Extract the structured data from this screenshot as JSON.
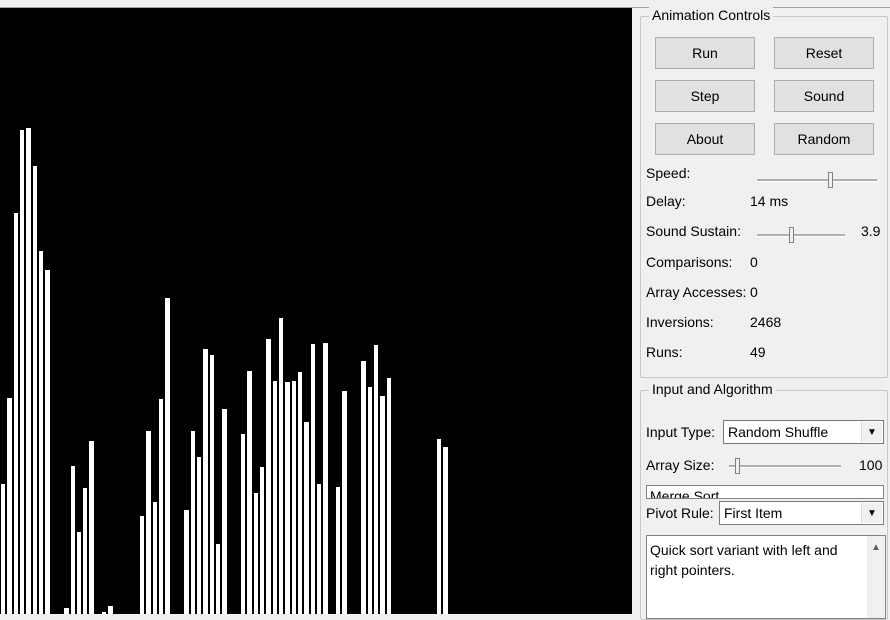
{
  "visualization": {
    "bar_color": "#ffffff",
    "background_color": "#000000",
    "values": [
      129,
      214,
      397,
      479,
      481,
      444,
      359,
      341,
      0,
      0,
      6,
      147,
      81,
      125,
      171,
      0,
      2,
      8,
      0,
      0,
      0,
      0,
      97,
      181,
      111,
      213,
      313,
      0,
      0,
      103,
      181,
      155,
      262,
      256,
      69,
      203,
      0,
      0,
      178,
      241,
      120,
      146,
      272,
      231,
      293,
      230,
      231,
      240,
      190,
      267,
      129,
      268,
      0,
      126,
      221,
      0,
      0,
      250,
      225,
      266,
      216,
      234,
      0,
      0,
      0,
      0,
      0,
      0,
      0,
      173,
      165,
      0,
      0,
      0,
      0,
      0,
      0,
      0,
      0,
      0,
      0,
      0,
      0,
      0,
      0,
      0,
      0,
      0,
      0,
      0,
      0,
      0,
      0,
      0,
      0,
      0,
      0,
      0,
      0,
      0
    ]
  },
  "controls": {
    "title": "Animation Controls",
    "buttons": {
      "run": "Run",
      "reset": "Reset",
      "step": "Step",
      "sound": "Sound",
      "about": "About",
      "random": "Random"
    },
    "speed_label": "Speed:",
    "speed_level": 0.62,
    "delay_label": "Delay:",
    "delay_value": "14 ms",
    "sustain_label": "Sound Sustain:",
    "sustain_value": "3.9",
    "sustain_level": 0.38,
    "comparisons_label": "Comparisons:",
    "comparisons_value": "0",
    "accesses_label": "Array Accesses:",
    "accesses_value": "0",
    "inversions_label": "Inversions:",
    "inversions_value": "2468",
    "runs_label": "Runs:",
    "runs_value": "49"
  },
  "input": {
    "title": "Input and Algorithm",
    "input_type_label": "Input Type:",
    "input_type_value": "Random Shuffle",
    "array_size_label": "Array Size:",
    "array_size_value": "100",
    "array_size_level": 0.06,
    "algorithm_partial": "Merge Sort",
    "pivot_label": "Pivot Rule:",
    "pivot_value": "First Item",
    "description": "Quick sort variant with left and right pointers."
  }
}
